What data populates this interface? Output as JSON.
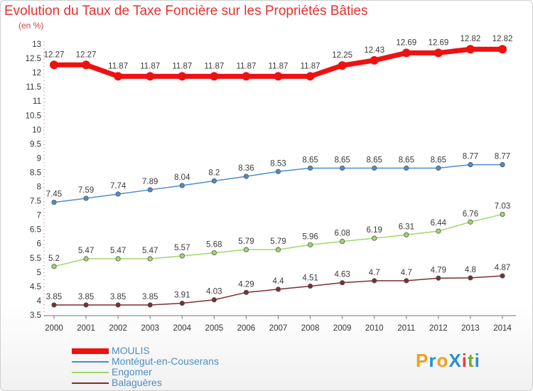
{
  "title": "Evolution du Taux de Taxe Foncière sur les Propriétés Bâties",
  "unit_label": "(en %)",
  "logo": {
    "text": "ProXiti",
    "colors": [
      "#f0a020",
      "#2a8fd0",
      "#f0a020",
      "#2a8fd0",
      "#e84040",
      "#6ab030",
      "#2a8fd0"
    ]
  },
  "chart_data": {
    "type": "line",
    "title": "Evolution du Taux de Taxe Foncière sur les Propriétés Bâties",
    "ylabel": "(en %)",
    "xlabel": "",
    "ylim": [
      3.5,
      13
    ],
    "ytick_step": 0.5,
    "yticks": [
      "3.5",
      "4",
      "4.5",
      "5",
      "5.5",
      "6",
      "6.5",
      "7",
      "7.5",
      "8",
      "8.5",
      "9",
      "9.5",
      "10",
      "10.5",
      "11",
      "11.5",
      "12",
      "12.5",
      "13"
    ],
    "categories": [
      "2000",
      "2001",
      "2002",
      "2003",
      "2004",
      "2005",
      "2006",
      "2007",
      "2008",
      "2009",
      "2010",
      "2011",
      "2012",
      "2013",
      "2014"
    ],
    "grid": false,
    "legend_position": "bottom-left",
    "series": [
      {
        "name": "MOULIS",
        "color": "#ee1111",
        "values": [
          12.27,
          12.27,
          11.87,
          11.87,
          11.87,
          11.87,
          11.87,
          11.87,
          11.87,
          12.25,
          12.43,
          12.69,
          12.69,
          12.82,
          12.82
        ],
        "labels": [
          "12.27",
          "12.27",
          "11.87",
          "11.87",
          "11.87",
          "11.87",
          "11.87",
          "11.87",
          "11.87",
          "12.25",
          "12.43",
          "12.69",
          "12.69",
          "12.82",
          "12.82"
        ]
      },
      {
        "name": "Montégut-en-Couserans",
        "color": "#4a8fc8",
        "values": [
          7.45,
          7.59,
          7.74,
          7.89,
          8.04,
          8.2,
          8.36,
          8.53,
          8.65,
          8.65,
          8.65,
          8.65,
          8.65,
          8.77,
          8.77
        ],
        "labels": [
          "7.45",
          "7.59",
          "7.74",
          "7.89",
          "8.04",
          "8.2",
          "8.36",
          "8.53",
          "8.65",
          "8.65",
          "8.65",
          "8.65",
          "8.65",
          "8.77",
          "8.77"
        ]
      },
      {
        "name": "Engomer",
        "color": "#9ed86a",
        "values": [
          5.2,
          5.47,
          5.47,
          5.47,
          5.57,
          5.68,
          5.79,
          5.79,
          5.96,
          6.08,
          6.19,
          6.31,
          6.44,
          6.76,
          7.03
        ],
        "labels": [
          "5.2",
          "5.47",
          "5.47",
          "5.47",
          "5.57",
          "5.68",
          "5.79",
          "5.79",
          "5.96",
          "6.08",
          "6.19",
          "6.31",
          "6.44",
          "6.76",
          "7.03"
        ]
      },
      {
        "name": "Balaguères",
        "color": "#7a2f2f",
        "values": [
          3.85,
          3.85,
          3.85,
          3.85,
          3.91,
          4.03,
          4.29,
          4.4,
          4.51,
          4.63,
          4.7,
          4.7,
          4.79,
          4.8,
          4.87
        ],
        "labels": [
          "3.85",
          "3.85",
          "3.85",
          "3.85",
          "3.91",
          "4.03",
          "4.29",
          "4.4",
          "4.51",
          "4.63",
          "4.7",
          "4.7",
          "4.79",
          "4.8",
          "4.87"
        ]
      }
    ]
  }
}
